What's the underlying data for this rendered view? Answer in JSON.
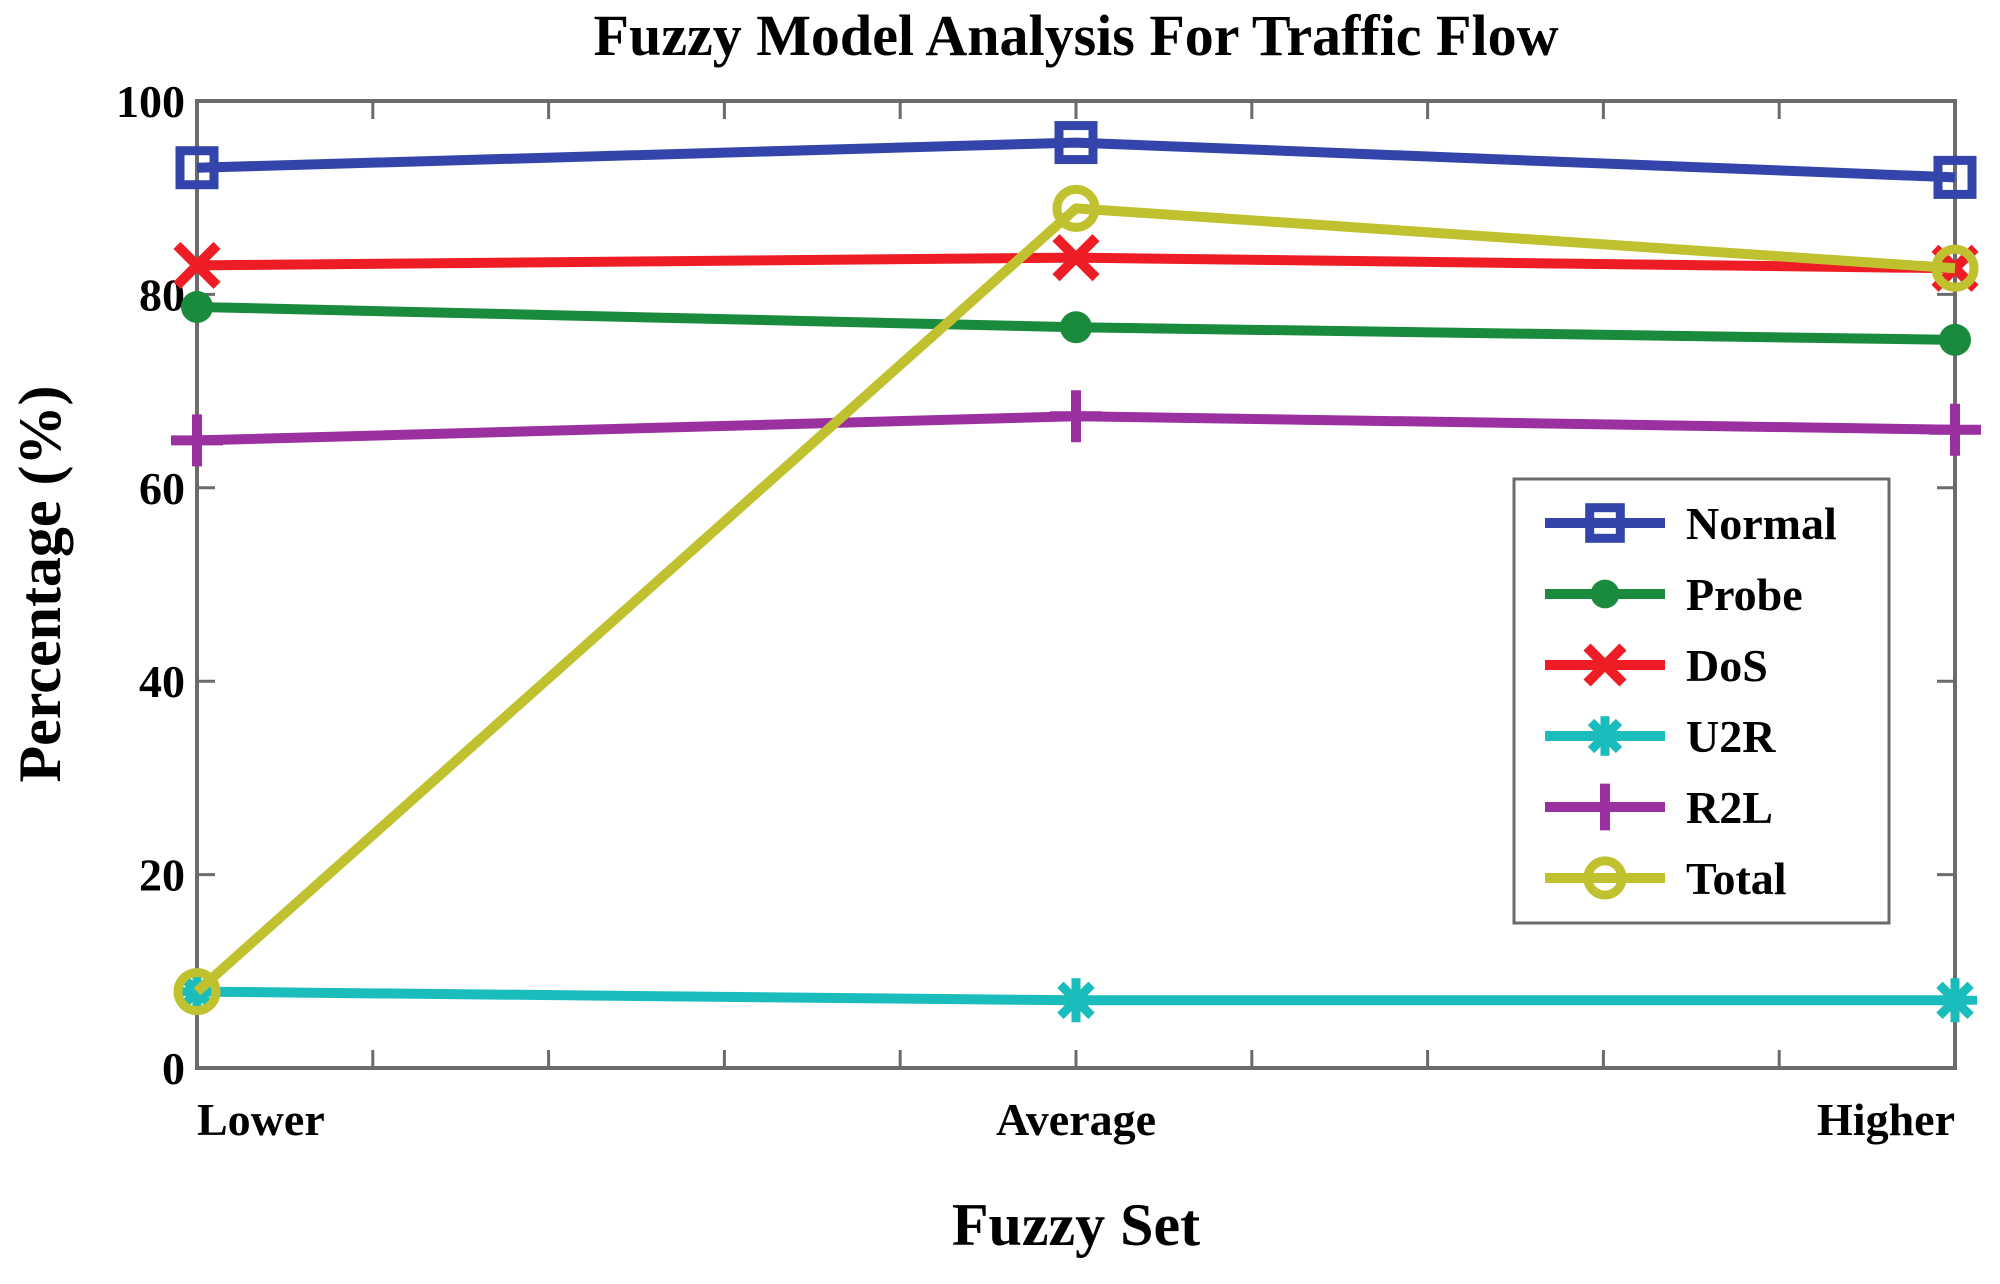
{
  "chart_data": {
    "type": "line",
    "title": "Fuzzy Model Analysis For Traffic Flow",
    "xlabel": "Fuzzy Set",
    "ylabel": "Percentage (%)",
    "categories": [
      "Lower",
      "Average",
      "Higher"
    ],
    "ylim": [
      0,
      100
    ],
    "yticks": [
      0,
      20,
      40,
      60,
      80,
      100
    ],
    "grid": false,
    "legend_position": "right-center (inside plot)",
    "series": [
      {
        "name": "Normal",
        "color": "#3344AA",
        "marker": "square",
        "values": [
          93.1,
          95.7,
          92.1
        ]
      },
      {
        "name": "Probe",
        "color": "#1A8A3C",
        "marker": "filled-circle",
        "values": [
          78.7,
          76.6,
          75.3
        ]
      },
      {
        "name": "DoS",
        "color": "#EE1C24",
        "marker": "x",
        "values": [
          83.0,
          83.8,
          82.7
        ]
      },
      {
        "name": "U2R",
        "color": "#1ABCBC",
        "marker": "asterisk",
        "values": [
          7.9,
          7.0,
          7.0
        ]
      },
      {
        "name": "R2L",
        "color": "#9B30A0",
        "marker": "plus",
        "values": [
          64.9,
          67.4,
          66.0
        ]
      },
      {
        "name": "Total",
        "color": "#BFC22E",
        "marker": "circle",
        "values": [
          7.9,
          88.9,
          82.7
        ]
      }
    ]
  }
}
